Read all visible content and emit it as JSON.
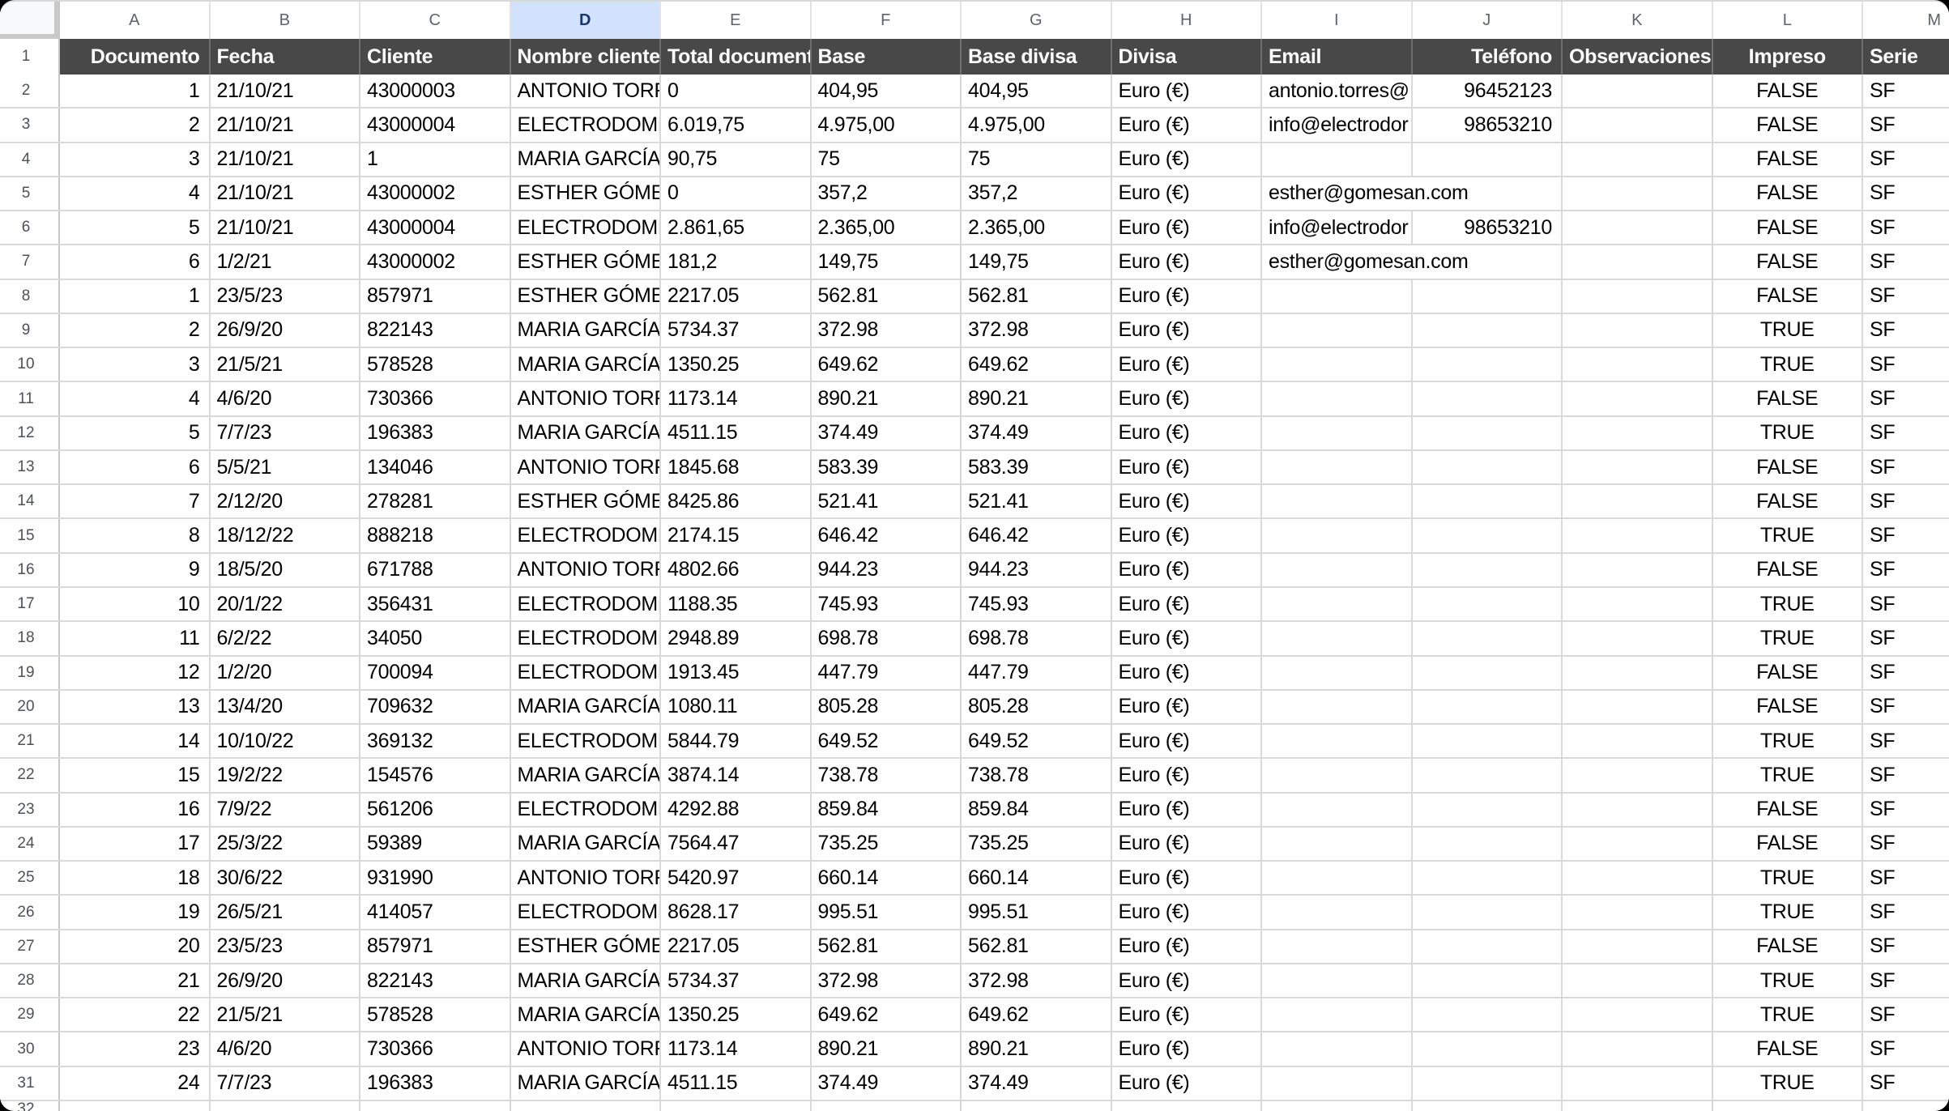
{
  "sheet": {
    "column_letters": [
      "A",
      "B",
      "C",
      "D",
      "E",
      "F",
      "G",
      "H",
      "I",
      "J",
      "K",
      "L",
      "M"
    ],
    "selected_column": "D",
    "header_row": {
      "row_number": "1",
      "labels": [
        "Documento",
        "Fecha",
        "Cliente",
        "Nombre cliente",
        "Total documento",
        "Base",
        "Base divisa",
        "Divisa",
        "Email",
        "Teléfono",
        "Observaciones",
        "Impreso",
        "Serie"
      ]
    },
    "rows": [
      {
        "n": "2",
        "v": [
          "1",
          "21/10/21",
          "43000003",
          "ANTONIO TORRE",
          "0",
          "404,95",
          "404,95",
          "Euro (€)",
          "antonio.torres@",
          "96452123",
          "",
          "FALSE",
          "SF"
        ]
      },
      {
        "n": "3",
        "v": [
          "2",
          "21/10/21",
          "43000004",
          "ELECTRODOMÉS",
          "6.019,75",
          "4.975,00",
          "4.975,00",
          "Euro (€)",
          "info@electrodor",
          "98653210",
          "",
          "FALSE",
          "SF"
        ]
      },
      {
        "n": "4",
        "v": [
          "3",
          "21/10/21",
          "1",
          "MARIA GARCÍA",
          "90,75",
          "75",
          "75",
          "Euro (€)",
          "",
          "",
          "",
          "FALSE",
          "SF"
        ]
      },
      {
        "n": "5",
        "v": [
          "4",
          "21/10/21",
          "43000002",
          "ESTHER GÓMEZ",
          "0",
          "357,2",
          "357,2",
          "Euro (€)",
          "esther@gomesan.com",
          "",
          "",
          "FALSE",
          "SF"
        ],
        "email_spill": true
      },
      {
        "n": "6",
        "v": [
          "5",
          "21/10/21",
          "43000004",
          "ELECTRODOMÉS",
          "2.861,65",
          "2.365,00",
          "2.365,00",
          "Euro (€)",
          "info@electrodor",
          "98653210",
          "",
          "FALSE",
          "SF"
        ]
      },
      {
        "n": "7",
        "v": [
          "6",
          "1/2/21",
          "43000002",
          "ESTHER GÓMEZ",
          "181,2",
          "149,75",
          "149,75",
          "Euro (€)",
          "esther@gomesan.com",
          "",
          "",
          "FALSE",
          "SF"
        ],
        "email_spill": true
      },
      {
        "n": "8",
        "v": [
          "1",
          "23/5/23",
          "857971",
          "ESTHER GÓMEZ",
          "2217.05",
          "562.81",
          "562.81",
          "Euro (€)",
          "",
          "",
          "",
          "FALSE",
          "SF"
        ]
      },
      {
        "n": "9",
        "v": [
          "2",
          "26/9/20",
          "822143",
          "MARIA GARCÍA",
          "5734.37",
          "372.98",
          "372.98",
          "Euro (€)",
          "",
          "",
          "",
          "TRUE",
          "SF"
        ]
      },
      {
        "n": "10",
        "v": [
          "3",
          "21/5/21",
          "578528",
          "MARIA GARCÍA",
          "1350.25",
          "649.62",
          "649.62",
          "Euro (€)",
          "",
          "",
          "",
          "TRUE",
          "SF"
        ]
      },
      {
        "n": "11",
        "v": [
          "4",
          "4/6/20",
          "730366",
          "ANTONIO TORRE",
          "1173.14",
          "890.21",
          "890.21",
          "Euro (€)",
          "",
          "",
          "",
          "FALSE",
          "SF"
        ]
      },
      {
        "n": "12",
        "v": [
          "5",
          "7/7/23",
          "196383",
          "MARIA GARCÍA",
          "4511.15",
          "374.49",
          "374.49",
          "Euro (€)",
          "",
          "",
          "",
          "TRUE",
          "SF"
        ]
      },
      {
        "n": "13",
        "v": [
          "6",
          "5/5/21",
          "134046",
          "ANTONIO TORRE",
          "1845.68",
          "583.39",
          "583.39",
          "Euro (€)",
          "",
          "",
          "",
          "FALSE",
          "SF"
        ]
      },
      {
        "n": "14",
        "v": [
          "7",
          "2/12/20",
          "278281",
          "ESTHER GÓMEZ",
          "8425.86",
          "521.41",
          "521.41",
          "Euro (€)",
          "",
          "",
          "",
          "FALSE",
          "SF"
        ]
      },
      {
        "n": "15",
        "v": [
          "8",
          "18/12/22",
          "888218",
          "ELECTRODOMÉS",
          "2174.15",
          "646.42",
          "646.42",
          "Euro (€)",
          "",
          "",
          "",
          "TRUE",
          "SF"
        ]
      },
      {
        "n": "16",
        "v": [
          "9",
          "18/5/20",
          "671788",
          "ANTONIO TORRE",
          "4802.66",
          "944.23",
          "944.23",
          "Euro (€)",
          "",
          "",
          "",
          "FALSE",
          "SF"
        ]
      },
      {
        "n": "17",
        "v": [
          "10",
          "20/1/22",
          "356431",
          "ELECTRODOMÉS",
          "1188.35",
          "745.93",
          "745.93",
          "Euro (€)",
          "",
          "",
          "",
          "TRUE",
          "SF"
        ]
      },
      {
        "n": "18",
        "v": [
          "11",
          "6/2/22",
          "34050",
          "ELECTRODOMÉS",
          "2948.89",
          "698.78",
          "698.78",
          "Euro (€)",
          "",
          "",
          "",
          "TRUE",
          "SF"
        ]
      },
      {
        "n": "19",
        "v": [
          "12",
          "1/2/20",
          "700094",
          "ELECTRODOMÉS",
          "1913.45",
          "447.79",
          "447.79",
          "Euro (€)",
          "",
          "",
          "",
          "FALSE",
          "SF"
        ]
      },
      {
        "n": "20",
        "v": [
          "13",
          "13/4/20",
          "709632",
          "MARIA GARCÍA",
          "1080.11",
          "805.28",
          "805.28",
          "Euro (€)",
          "",
          "",
          "",
          "FALSE",
          "SF"
        ]
      },
      {
        "n": "21",
        "v": [
          "14",
          "10/10/22",
          "369132",
          "ELECTRODOMÉS",
          "5844.79",
          "649.52",
          "649.52",
          "Euro (€)",
          "",
          "",
          "",
          "TRUE",
          "SF"
        ]
      },
      {
        "n": "22",
        "v": [
          "15",
          "19/2/22",
          "154576",
          "MARIA GARCÍA",
          "3874.14",
          "738.78",
          "738.78",
          "Euro (€)",
          "",
          "",
          "",
          "TRUE",
          "SF"
        ]
      },
      {
        "n": "23",
        "v": [
          "16",
          "7/9/22",
          "561206",
          "ELECTRODOMÉS",
          "4292.88",
          "859.84",
          "859.84",
          "Euro (€)",
          "",
          "",
          "",
          "FALSE",
          "SF"
        ]
      },
      {
        "n": "24",
        "v": [
          "17",
          "25/3/22",
          "59389",
          "MARIA GARCÍA",
          "7564.47",
          "735.25",
          "735.25",
          "Euro (€)",
          "",
          "",
          "",
          "FALSE",
          "SF"
        ]
      },
      {
        "n": "25",
        "v": [
          "18",
          "30/6/22",
          "931990",
          "ANTONIO TORRE",
          "5420.97",
          "660.14",
          "660.14",
          "Euro (€)",
          "",
          "",
          "",
          "TRUE",
          "SF"
        ]
      },
      {
        "n": "26",
        "v": [
          "19",
          "26/5/21",
          "414057",
          "ELECTRODOMÉS",
          "8628.17",
          "995.51",
          "995.51",
          "Euro (€)",
          "",
          "",
          "",
          "TRUE",
          "SF"
        ]
      },
      {
        "n": "27",
        "v": [
          "20",
          "23/5/23",
          "857971",
          "ESTHER GÓMEZ",
          "2217.05",
          "562.81",
          "562.81",
          "Euro (€)",
          "",
          "",
          "",
          "FALSE",
          "SF"
        ]
      },
      {
        "n": "28",
        "v": [
          "21",
          "26/9/20",
          "822143",
          "MARIA GARCÍA",
          "5734.37",
          "372.98",
          "372.98",
          "Euro (€)",
          "",
          "",
          "",
          "TRUE",
          "SF"
        ]
      },
      {
        "n": "29",
        "v": [
          "22",
          "21/5/21",
          "578528",
          "MARIA GARCÍA",
          "1350.25",
          "649.62",
          "649.62",
          "Euro (€)",
          "",
          "",
          "",
          "TRUE",
          "SF"
        ]
      },
      {
        "n": "30",
        "v": [
          "23",
          "4/6/20",
          "730366",
          "ANTONIO TORRE",
          "1173.14",
          "890.21",
          "890.21",
          "Euro (€)",
          "",
          "",
          "",
          "FALSE",
          "SF"
        ]
      },
      {
        "n": "31",
        "v": [
          "24",
          "7/7/23",
          "196383",
          "MARIA GARCÍA",
          "4511.15",
          "374.49",
          "374.49",
          "Euro (€)",
          "",
          "",
          "",
          "TRUE",
          "SF"
        ]
      }
    ],
    "partial_row_number": "32"
  },
  "colors": {
    "header_row_bg": "#484848",
    "header_row_text": "#ffffff",
    "selected_column_bg": "#d3e2fc",
    "selected_column_text": "#19356f",
    "gridline": "#d9d9d9",
    "label_text": "#5f6368"
  }
}
